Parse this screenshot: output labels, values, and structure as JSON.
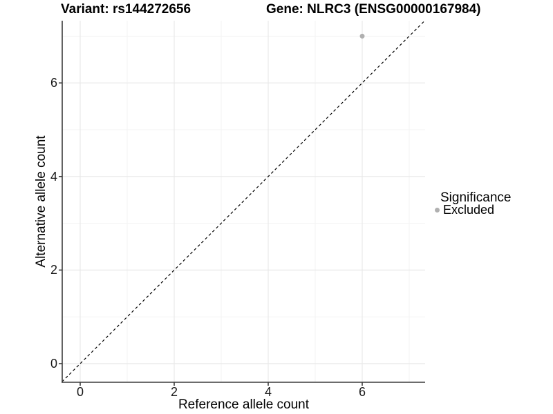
{
  "chart_data": {
    "type": "scatter",
    "title_left": "Variant: rs144272656",
    "title_right": "Gene: NLRC3 (ENSG00000167984)",
    "xlabel": "Reference allele count",
    "ylabel": "Alternative allele count",
    "xlim": [
      -0.4,
      7.35
    ],
    "ylim": [
      -0.4,
      7.35
    ],
    "x_ticks": [
      0,
      2,
      4,
      6
    ],
    "y_ticks": [
      0,
      2,
      4,
      6
    ],
    "x_minor_ticks": [
      1,
      3,
      5,
      7
    ],
    "y_minor_ticks": [
      1,
      3,
      5,
      7
    ],
    "grid": "major+minor",
    "points": [
      {
        "x": 6,
        "y": 7,
        "series": "Excluded"
      }
    ],
    "identity_line": {
      "type": "y=x",
      "style": "dashed",
      "from": [
        -0.7,
        -0.7
      ],
      "to": [
        7.6,
        7.6
      ]
    },
    "legend": {
      "position": "right",
      "title": "Significance",
      "entries": [
        {
          "label": "Excluded",
          "color": "#b0b0b0",
          "marker": "circle"
        }
      ]
    },
    "colors": {
      "background": "#ffffff",
      "grid_major": "#e8e8e8",
      "grid_minor": "#f3f3f3",
      "axis": "#3c3c3c",
      "identity_line": "#000000",
      "point": "#b0b0b0",
      "tick_label": "#1a1a1a"
    }
  }
}
